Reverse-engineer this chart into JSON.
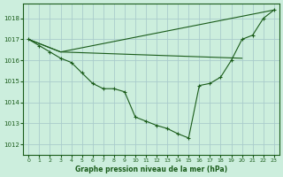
{
  "title": "Graphe pression niveau de la mer (hPa)",
  "background_color": "#cceedd",
  "grid_color": "#aacccc",
  "line_color": "#1a5c1a",
  "marker_color": "#1a5c1a",
  "xlim": [
    -0.5,
    23.5
  ],
  "ylim": [
    1011.5,
    1018.7
  ],
  "yticks": [
    1012,
    1013,
    1014,
    1015,
    1016,
    1017,
    1018
  ],
  "xticks": [
    0,
    1,
    2,
    3,
    4,
    5,
    6,
    7,
    8,
    9,
    10,
    11,
    12,
    13,
    14,
    15,
    16,
    17,
    18,
    19,
    20,
    21,
    22,
    23
  ],
  "series": [
    {
      "x": [
        0,
        1,
        2,
        3,
        4,
        5,
        6,
        7,
        8,
        9,
        10,
        11,
        12,
        13,
        14,
        15,
        16,
        17,
        18,
        19,
        20,
        21,
        22,
        23
      ],
      "y": [
        1017.0,
        1016.7,
        1016.4,
        1016.1,
        1015.9,
        1015.4,
        1014.9,
        1014.65,
        1014.65,
        1014.5,
        1013.3,
        1013.1,
        1012.9,
        1012.75,
        1012.5,
        1012.3,
        1014.8,
        1014.9,
        1015.2,
        1016.0,
        1017.0,
        1017.2,
        1018.0,
        1018.4
      ],
      "has_markers": true
    },
    {
      "x": [
        0,
        3,
        23
      ],
      "y": [
        1017.0,
        1016.4,
        1018.4
      ],
      "has_markers": false
    },
    {
      "x": [
        0,
        3,
        20
      ],
      "y": [
        1017.0,
        1016.4,
        1016.1
      ],
      "has_markers": false
    }
  ]
}
